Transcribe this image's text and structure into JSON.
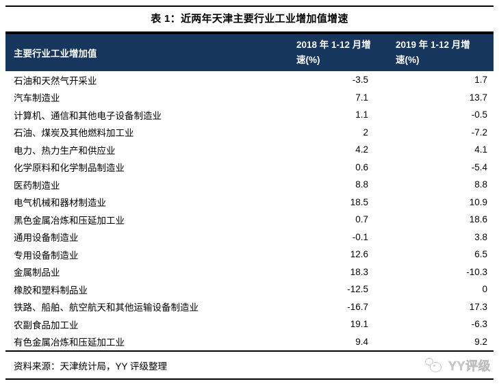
{
  "title": "表 1：近两年天津主要行业工业增加值增速",
  "table": {
    "columns": [
      "主要行业工业增加值",
      "2018 年 1-12 月增速(%)",
      "2019 年 1-12 月增速(%)"
    ],
    "rows": [
      {
        "industry": "石油和天然气开采业",
        "y2018": "-3.5",
        "y2019": "1.7"
      },
      {
        "industry": "汽车制造业",
        "y2018": "7.1",
        "y2019": "13.7"
      },
      {
        "industry": "计算机、通信和其他电子设备制造业",
        "y2018": "1.1",
        "y2019": "-0.5"
      },
      {
        "industry": "石油、煤炭及其他燃料加工业",
        "y2018": "2",
        "y2019": "-7.2"
      },
      {
        "industry": "电力、热力生产和供应业",
        "y2018": "4.2",
        "y2019": "4.1"
      },
      {
        "industry": "化学原料和化学制品制造业",
        "y2018": "0.6",
        "y2019": "-5.4"
      },
      {
        "industry": "医药制造业",
        "y2018": "8.8",
        "y2019": "8.8"
      },
      {
        "industry": "电气机械和器材制造业",
        "y2018": "18.5",
        "y2019": "10.9"
      },
      {
        "industry": "黑色金属冶炼和压延加工业",
        "y2018": "0.7",
        "y2019": "18.6"
      },
      {
        "industry": "通用设备制造业",
        "y2018": "-0.1",
        "y2019": "3.8"
      },
      {
        "industry": "专用设备制造业",
        "y2018": "12.6",
        "y2019": "6.5"
      },
      {
        "industry": "金属制品业",
        "y2018": "18.3",
        "y2019": "-10.3"
      },
      {
        "industry": "橡胶和塑料制品业",
        "y2018": "-12.5",
        "y2019": "0"
      },
      {
        "industry": "铁路、船舶、航空航天和其他运输设备制造业",
        "y2018": "-16.7",
        "y2019": "17.3"
      },
      {
        "industry": "农副食品加工业",
        "y2018": "19.1",
        "y2019": "-6.3"
      },
      {
        "industry": "有色金属冶炼和压延加工业",
        "y2018": "9.4",
        "y2019": "9.2"
      }
    ]
  },
  "footer": {
    "source": "资料来源：天津统计局，YY 评级整理",
    "logo_text": "YY评级"
  },
  "colors": {
    "header_bg": "#17365D",
    "header_text": "#ffffff",
    "rule": "#000000",
    "logo_gray": "#c9c9c9"
  }
}
